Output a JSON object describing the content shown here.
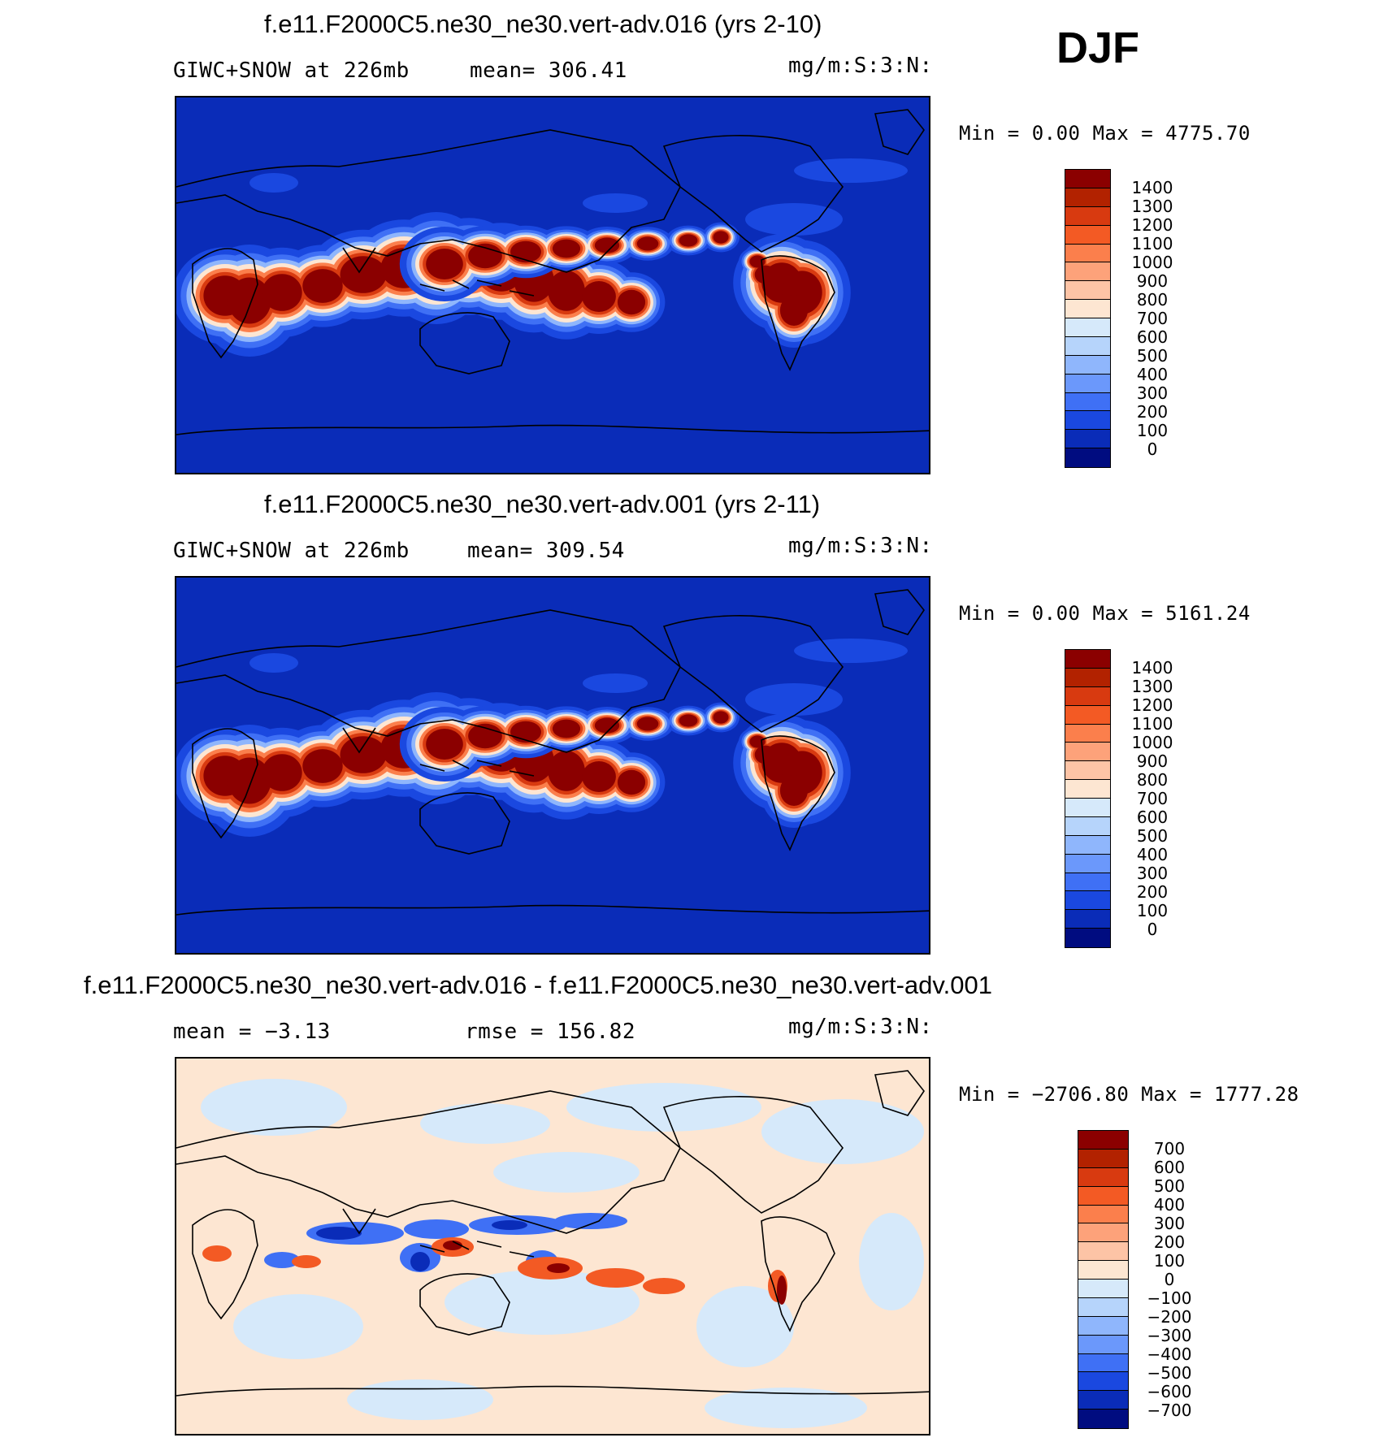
{
  "season": "DJF",
  "panels": [
    {
      "title": "f.e11.F2000C5.ne30_ne30.vert-adv.016 (yrs 2-10)",
      "left_label": "GIWC+SNOW at 226mb",
      "mid_label": "mean= 306.41",
      "units": "mg/m:S:3:N:",
      "minmax": "Min =    0.00 Max = 4775.70",
      "field": "control"
    },
    {
      "title": "f.e11.F2000C5.ne30_ne30.vert-adv.001 (yrs 2-11)",
      "left_label": "GIWC+SNOW at 226mb",
      "mid_label": "mean= 309.54",
      "units": "mg/m:S:3:N:",
      "minmax": "Min =    0.00 Max = 5161.24",
      "field": "test"
    },
    {
      "title": "f.e11.F2000C5.ne30_ne30.vert-adv.016 - f.e11.F2000C5.ne30_ne30.vert-adv.001",
      "left_label": "mean =   −3.13",
      "mid_label": "rmse = 156.82",
      "units": "mg/m:S:3:N:",
      "minmax": "Min = −2706.80 Max = 1777.28",
      "field": "difference"
    }
  ],
  "colorbars": {
    "abs": {
      "labels": [
        "1400",
        "1300",
        "1200",
        "1100",
        "1000",
        "900",
        "800",
        "700",
        "600",
        "500",
        "400",
        "300",
        "200",
        "100",
        "0"
      ],
      "colors": [
        "#8b0000",
        "#b22200",
        "#d83a10",
        "#f35a24",
        "#fb7f4c",
        "#fda27a",
        "#fdc4a6",
        "#fde6d2",
        "#d6e9fa",
        "#b6d4fb",
        "#8fb6fc",
        "#6b98fb",
        "#3f70f5",
        "#1a48e0",
        "#0a2cb8",
        "#000c80"
      ]
    },
    "diff": {
      "labels": [
        "700",
        "600",
        "500",
        "400",
        "300",
        "200",
        "100",
        "0",
        "−100",
        "−200",
        "−300",
        "−400",
        "−500",
        "−600",
        "−700"
      ],
      "colors": [
        "#8b0000",
        "#b22200",
        "#d83a10",
        "#f35a24",
        "#fb7f4c",
        "#fda27a",
        "#fdc4a6",
        "#fde6d2",
        "#d6e9fa",
        "#b6d4fb",
        "#8fb6fc",
        "#6b98fb",
        "#3f70f5",
        "#1a48e0",
        "#0a2cb8",
        "#000c80"
      ]
    }
  }
}
